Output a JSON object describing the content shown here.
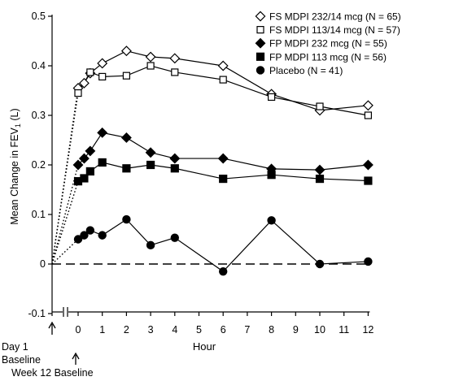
{
  "chart_data": {
    "type": "line",
    "ylabel": "Mean Change in FEV",
    "ylabel_sub": "1",
    "ylabel_unit": " (L)",
    "xlabel": "Hour",
    "ylim": [
      -0.1,
      0.5
    ],
    "yticks": [
      -0.1,
      0,
      0.1,
      0.2,
      0.3,
      0.4,
      0.5
    ],
    "ytick_labels": [
      "-0.1",
      "0",
      "0.1",
      "0.2",
      "0.3",
      "0.4",
      "0.5"
    ],
    "xlim": [
      -1.1,
      12.2
    ],
    "xticks": [
      0,
      1,
      2,
      3,
      4,
      5,
      6,
      7,
      8,
      9,
      10,
      11,
      12
    ],
    "xtick_labels": [
      "0",
      "1",
      "2",
      "3",
      "4",
      "5",
      "6",
      "7",
      "8",
      "9",
      "10",
      "11",
      "12"
    ],
    "zero_line": "dashed",
    "axis_break": "between Day 1 Baseline and hour 0",
    "baseline_labels": {
      "day1_line1": "Day 1",
      "day1_line2": "Baseline",
      "week12": "Week 12 Baseline"
    },
    "legend_position": "top-right",
    "series": [
      {
        "name": "FS MDPI 232/14 mcg (N = 65)",
        "marker": "diamond-open",
        "x": [
          0,
          0.25,
          0.5,
          1,
          2,
          3,
          4,
          6,
          8,
          10,
          12
        ],
        "values": [
          0.355,
          0.365,
          0.385,
          0.405,
          0.43,
          0.418,
          0.415,
          0.4,
          0.343,
          0.31,
          0.32
        ]
      },
      {
        "name": "FS MDPI 113/14 mcg (N = 57)",
        "marker": "square-open",
        "x": [
          0,
          0.5,
          1,
          2,
          3,
          4,
          6,
          8,
          10,
          12
        ],
        "values": [
          0.345,
          0.387,
          0.378,
          0.38,
          0.4,
          0.387,
          0.372,
          0.337,
          0.318,
          0.3
        ]
      },
      {
        "name": "FP MDPI 232 mcg (N = 55)",
        "marker": "diamond-filled",
        "x": [
          0,
          0.25,
          0.5,
          1,
          2,
          3,
          4,
          6,
          8,
          10,
          12
        ],
        "values": [
          0.2,
          0.213,
          0.228,
          0.265,
          0.255,
          0.225,
          0.213,
          0.213,
          0.192,
          0.19,
          0.2
        ]
      },
      {
        "name": "FP MDPI 113 mcg (N = 56)",
        "marker": "square-filled",
        "x": [
          0,
          0.25,
          0.5,
          1,
          2,
          3,
          4,
          6,
          8,
          10,
          12
        ],
        "values": [
          0.167,
          0.173,
          0.187,
          0.205,
          0.193,
          0.2,
          0.193,
          0.172,
          0.18,
          0.172,
          0.168
        ]
      },
      {
        "name": "Placebo (N = 41)",
        "marker": "circle-filled",
        "x": [
          0,
          0.25,
          0.5,
          1,
          2,
          3,
          4,
          6,
          8,
          10,
          12
        ],
        "values": [
          0.05,
          0.058,
          0.068,
          0.058,
          0.09,
          0.038,
          0.053,
          -0.015,
          0.088,
          0.0,
          0.005
        ]
      }
    ]
  }
}
